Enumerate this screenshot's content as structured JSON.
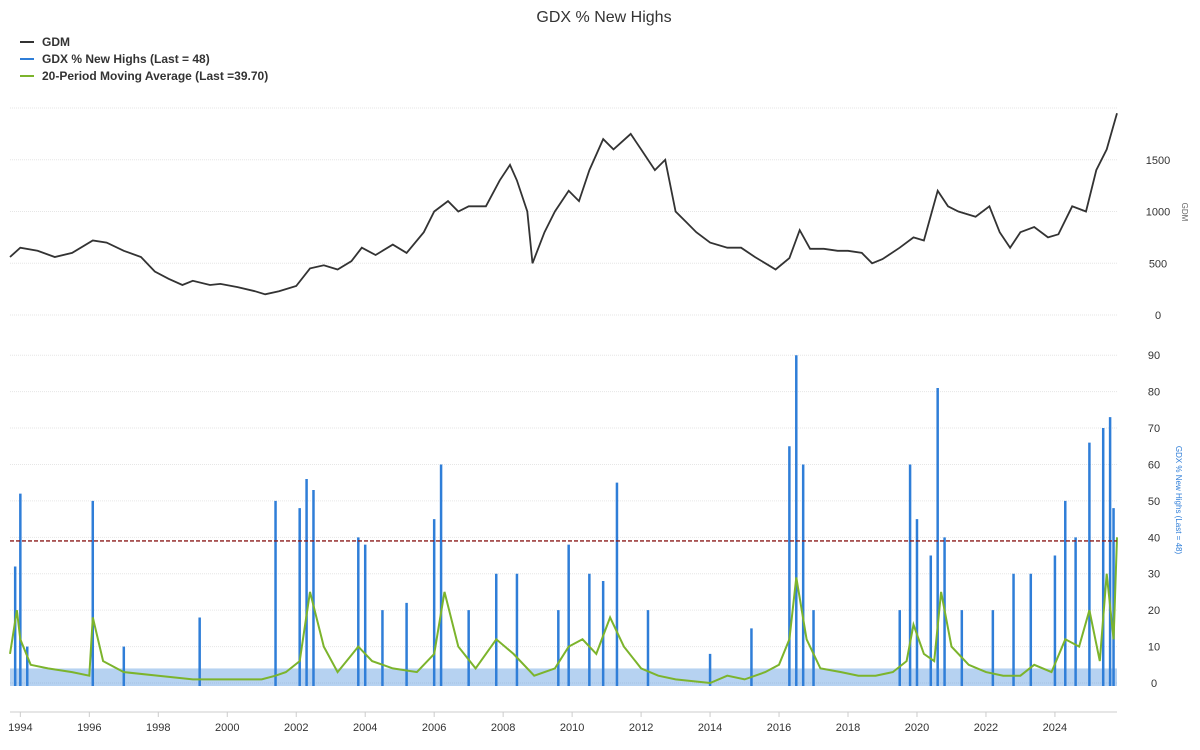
{
  "chart_data": {
    "type": "line",
    "title": "GDX % New Highs",
    "legend": {
      "placement": "top-left",
      "entries": [
        {
          "label": "GDM",
          "color": "#333333"
        },
        {
          "label": "GDX % New Highs (Last = 48)",
          "color": "#2f7ed8"
        },
        {
          "label": "20-Period Moving Average (Last =39.70)",
          "color": "#7cb42c"
        }
      ]
    },
    "x_axis": {
      "range": [
        1993.7,
        2025.8
      ],
      "tick_labels": [
        "1994",
        "1996",
        "1998",
        "2000",
        "2002",
        "2004",
        "2006",
        "2008",
        "2010",
        "2012",
        "2014",
        "2016",
        "2018",
        "2020",
        "2022",
        "2024"
      ]
    },
    "panels": [
      {
        "name": "price",
        "y_axis_title": "GDM",
        "y_range": [
          0,
          2000
        ],
        "y_tick_labels": [
          "0",
          "500",
          "1000",
          "1500"
        ],
        "grid": true,
        "series": [
          {
            "name": "GDM",
            "color": "#333333",
            "x": [
              1993.7,
              1994.0,
              1994.5,
              1995.0,
              1995.5,
              1996.1,
              1996.5,
              1997.0,
              1997.5,
              1997.9,
              1998.3,
              1998.7,
              1999.0,
              1999.5,
              1999.8,
              2000.3,
              2000.8,
              2001.1,
              2001.5,
              2002.0,
              2002.4,
              2002.8,
              2003.2,
              2003.6,
              2003.9,
              2004.3,
              2004.8,
              2005.2,
              2005.7,
              2006.0,
              2006.4,
              2006.7,
              2007.0,
              2007.5,
              2007.9,
              2008.2,
              2008.4,
              2008.7,
              2008.85,
              2009.2,
              2009.5,
              2009.9,
              2010.2,
              2010.5,
              2010.9,
              2011.2,
              2011.7,
              2012.0,
              2012.4,
              2012.7,
              2013.0,
              2013.3,
              2013.6,
              2014.0,
              2014.5,
              2014.9,
              2015.3,
              2015.7,
              2015.9,
              2016.3,
              2016.6,
              2016.9,
              2017.3,
              2017.7,
              2018.0,
              2018.4,
              2018.7,
              2019.0,
              2019.5,
              2019.9,
              2020.2,
              2020.6,
              2020.9,
              2021.2,
              2021.7,
              2022.1,
              2022.4,
              2022.7,
              2023.0,
              2023.4,
              2023.8,
              2024.1,
              2024.5,
              2024.9,
              2025.2,
              2025.5,
              2025.8
            ],
            "values": [
              560,
              650,
              620,
              560,
              600,
              720,
              700,
              620,
              560,
              420,
              350,
              290,
              330,
              290,
              300,
              270,
              230,
              200,
              230,
              280,
              450,
              480,
              440,
              520,
              650,
              580,
              680,
              600,
              800,
              1000,
              1100,
              1000,
              1050,
              1050,
              1300,
              1450,
              1300,
              1000,
              500,
              800,
              1000,
              1200,
              1100,
              1400,
              1700,
              1600,
              1750,
              1600,
              1400,
              1500,
              1000,
              900,
              800,
              700,
              650,
              650,
              560,
              480,
              440,
              550,
              820,
              640,
              640,
              620,
              620,
              600,
              500,
              540,
              650,
              750,
              720,
              1200,
              1050,
              1000,
              950,
              1050,
              800,
              650,
              800,
              850,
              750,
              780,
              1050,
              1000,
              1400,
              1600,
              1950
            ]
          }
        ]
      },
      {
        "name": "breadth",
        "y_axis_title": "GDX % New Highs (Last = 48)",
        "y_range": [
          0,
          95
        ],
        "y_tick_labels": [
          "0",
          "10",
          "20",
          "30",
          "40",
          "50",
          "60",
          "70",
          "80",
          "90"
        ],
        "grid": true,
        "reference_line": {
          "value": 39,
          "color": "#8b1a1a",
          "style": "dashed"
        },
        "series": [
          {
            "name": "GDX % New Highs (Last = 48)",
            "color": "#2f7ed8",
            "style": "spikes",
            "x": [
              1993.85,
              1994.0,
              1994.2,
              1996.1,
              1997.0,
              1999.2,
              2001.4,
              2002.1,
              2002.3,
              2002.5,
              2003.8,
              2004.0,
              2004.5,
              2005.2,
              2006.0,
              2006.2,
              2007.0,
              2007.8,
              2008.4,
              2009.6,
              2009.9,
              2010.5,
              2010.9,
              2011.3,
              2012.2,
              2014.0,
              2015.2,
              2016.3,
              2016.5,
              2016.7,
              2017.0,
              2019.5,
              2019.8,
              2020.0,
              2020.4,
              2020.6,
              2020.8,
              2021.3,
              2022.2,
              2022.8,
              2023.3,
              2024.0,
              2024.3,
              2024.6,
              2025.0,
              2025.4,
              2025.6,
              2025.7
            ],
            "values": [
              32,
              52,
              10,
              50,
              10,
              18,
              50,
              48,
              56,
              53,
              40,
              38,
              20,
              22,
              45,
              60,
              20,
              30,
              30,
              20,
              38,
              30,
              28,
              55,
              20,
              8,
              15,
              65,
              90,
              60,
              20,
              20,
              60,
              45,
              35,
              81,
              40,
              20,
              20,
              30,
              30,
              35,
              50,
              40,
              66,
              70,
              73,
              48
            ]
          },
          {
            "name": "20-Period Moving Average (Last =39.70)",
            "color": "#7cb42c",
            "x": [
              1993.7,
              1993.9,
              1994.0,
              1994.3,
              1994.8,
              1995.5,
              1996.0,
              1996.1,
              1996.4,
              1997.0,
              1998.0,
              1999.0,
              2000.0,
              2001.0,
              2001.4,
              2001.7,
              2002.1,
              2002.4,
              2002.8,
              2003.2,
              2003.8,
              2004.2,
              2004.8,
              2005.5,
              2006.0,
              2006.3,
              2006.7,
              2007.2,
              2007.8,
              2008.3,
              2008.9,
              2009.5,
              2009.9,
              2010.3,
              2010.7,
              2011.1,
              2011.5,
              2012.0,
              2012.5,
              2013.0,
              2014.0,
              2014.5,
              2015.0,
              2015.6,
              2016.0,
              2016.3,
              2016.5,
              2016.8,
              2017.2,
              2017.8,
              2018.3,
              2018.8,
              2019.3,
              2019.7,
              2019.9,
              2020.2,
              2020.5,
              2020.7,
              2021.0,
              2021.5,
              2022.0,
              2022.5,
              2023.0,
              2023.4,
              2023.9,
              2024.3,
              2024.7,
              2025.0,
              2025.3,
              2025.5,
              2025.7,
              2025.8
            ],
            "values": [
              8,
              20,
              12,
              5,
              4,
              3,
              2,
              18,
              6,
              3,
              2,
              1,
              1,
              1,
              2,
              3,
              6,
              25,
              10,
              3,
              10,
              6,
              4,
              3,
              8,
              25,
              10,
              4,
              12,
              8,
              2,
              4,
              10,
              12,
              8,
              18,
              10,
              4,
              2,
              1,
              0,
              2,
              1,
              3,
              5,
              12,
              29,
              12,
              4,
              3,
              2,
              2,
              3,
              6,
              16,
              8,
              6,
              25,
              10,
              5,
              3,
              2,
              2,
              5,
              3,
              12,
              10,
              20,
              6,
              30,
              12,
              40
            ]
          }
        ]
      }
    ]
  }
}
